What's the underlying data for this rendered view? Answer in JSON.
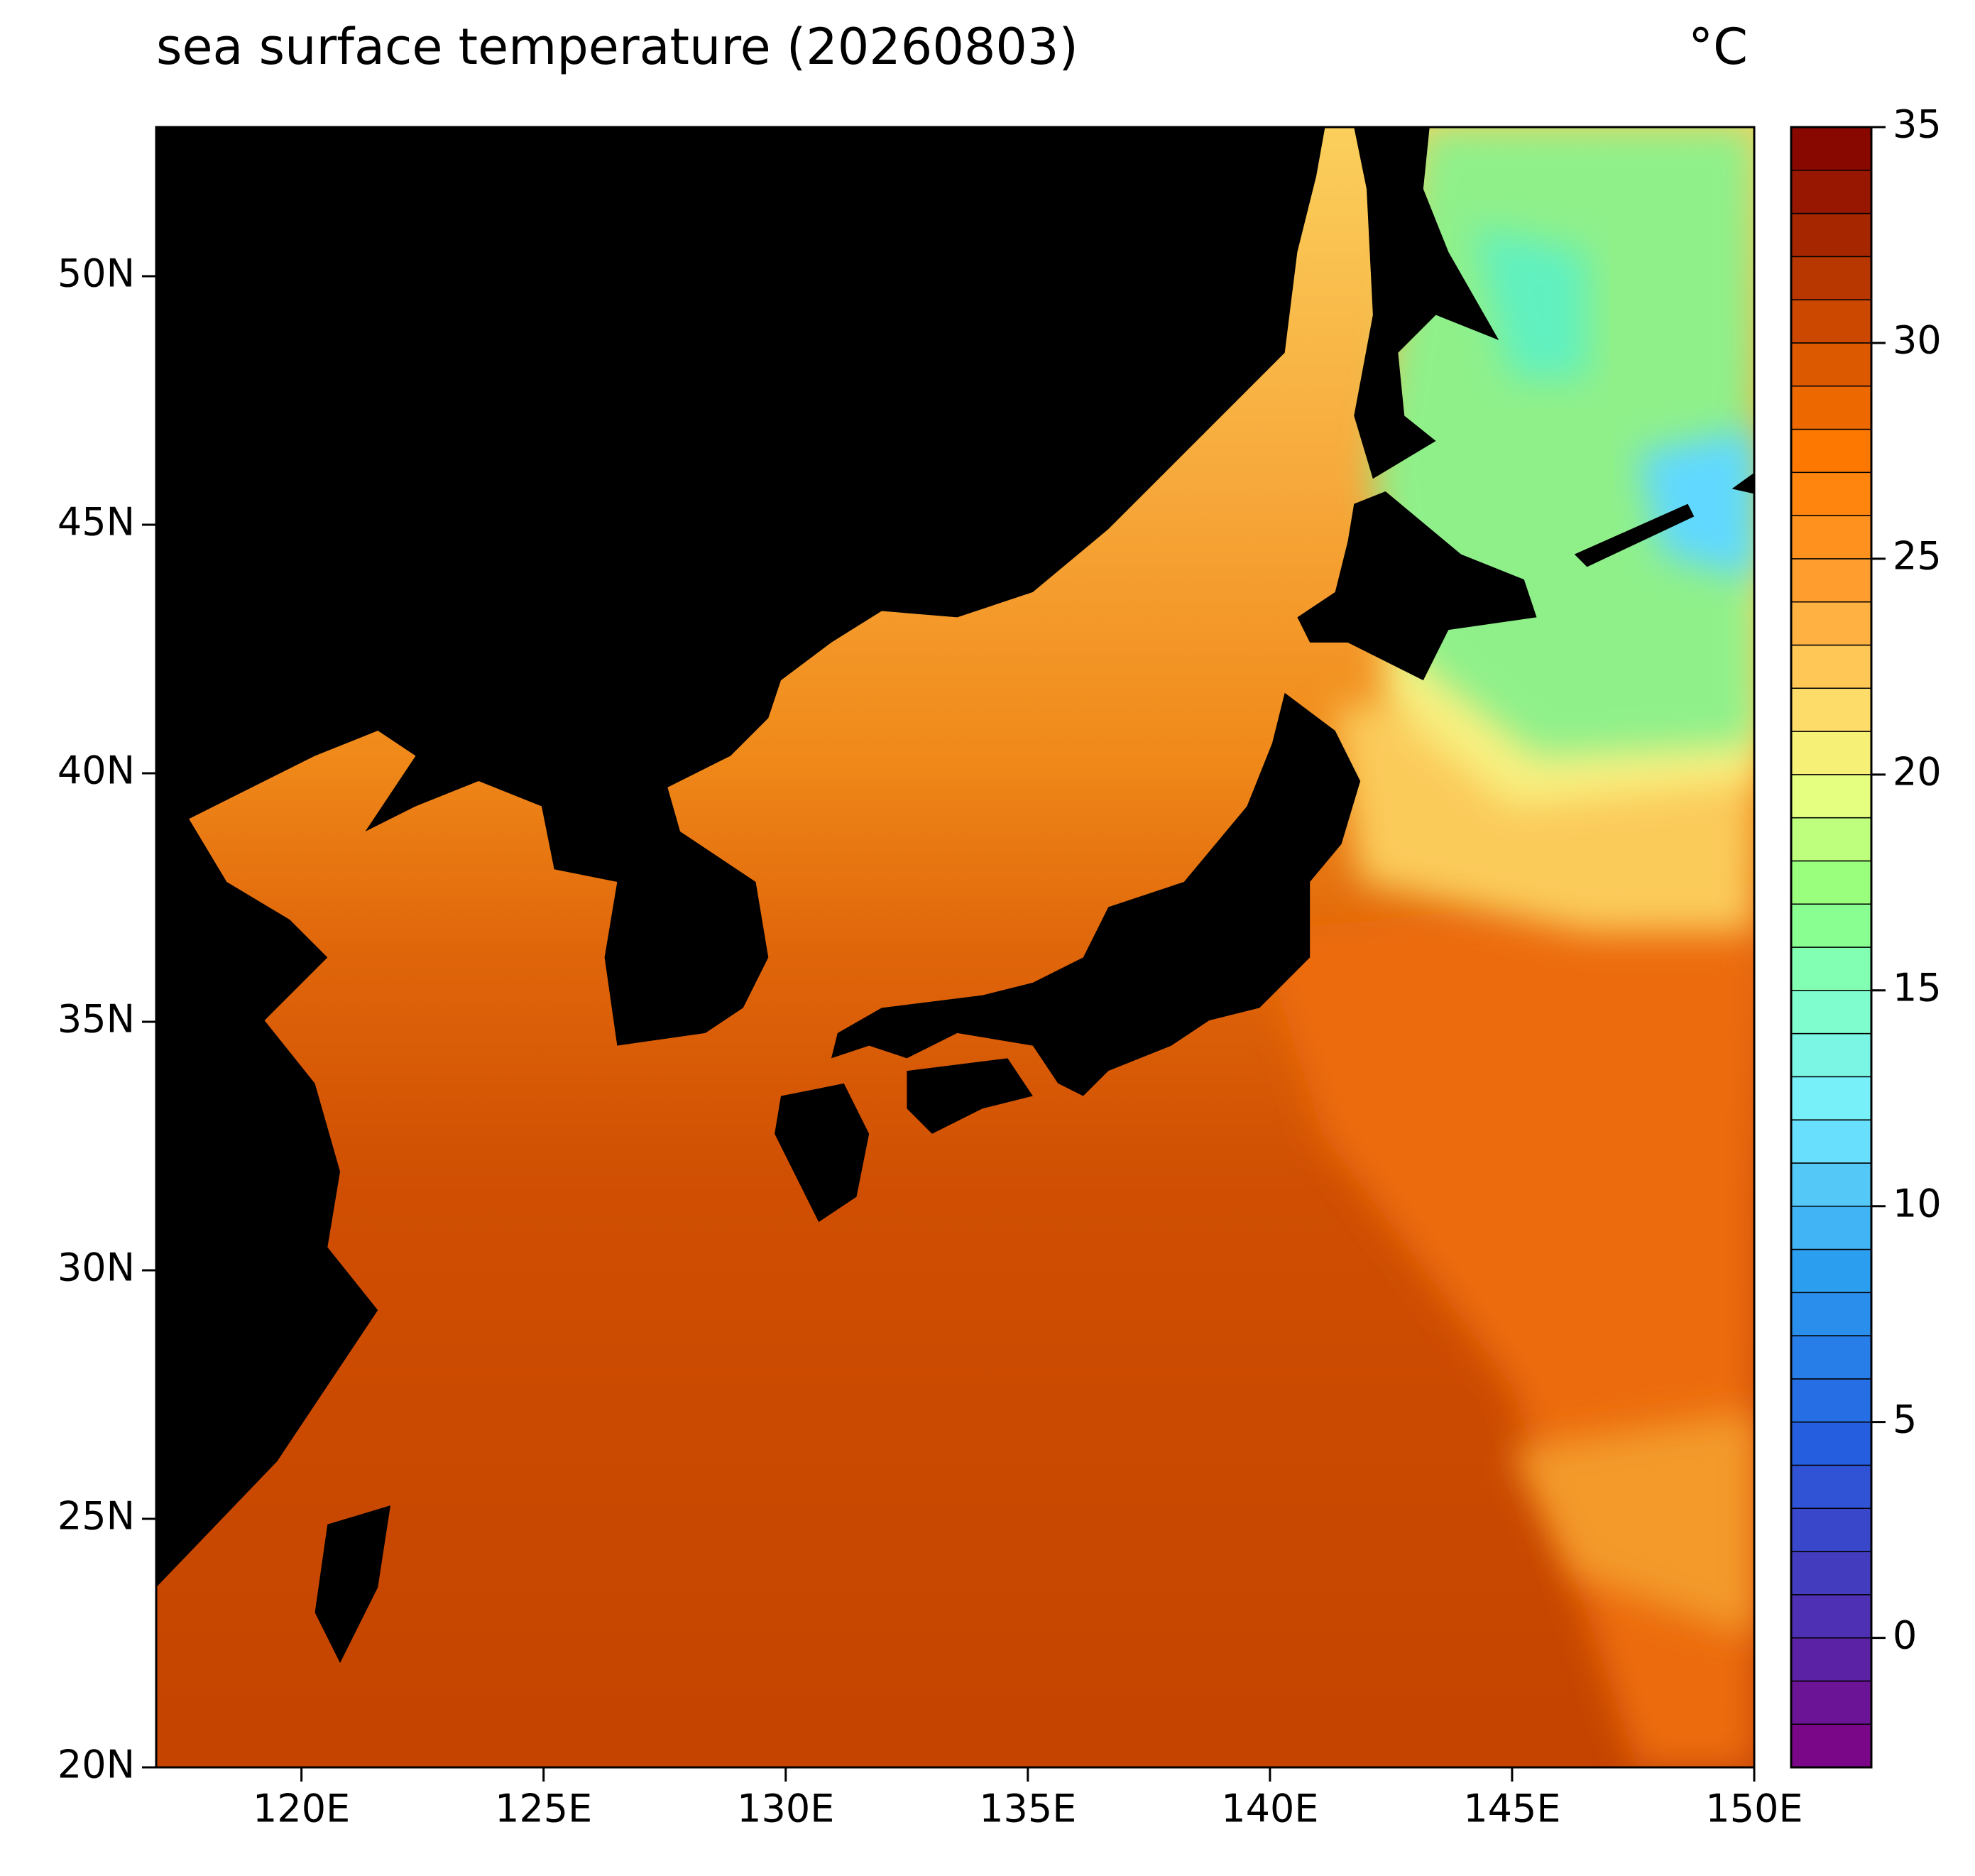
{
  "chart_data": {
    "type": "map",
    "title": "sea surface temperature (20260803)",
    "unit": "°C",
    "xlim": [
      117,
      150
    ],
    "ylim": [
      20,
      53
    ],
    "xticks": [
      {
        "value": 120,
        "label": "120E"
      },
      {
        "value": 125,
        "label": "125E"
      },
      {
        "value": 130,
        "label": "130E"
      },
      {
        "value": 135,
        "label": "135E"
      },
      {
        "value": 140,
        "label": "140E"
      },
      {
        "value": 145,
        "label": "145E"
      },
      {
        "value": 150,
        "label": "150E"
      }
    ],
    "yticks": [
      {
        "value": 20,
        "label": "20N"
      },
      {
        "value": 25,
        "label": "25N"
      },
      {
        "value": 30,
        "label": "30N"
      },
      {
        "value": 35,
        "label": "35N"
      },
      {
        "value": 40,
        "label": "40N"
      },
      {
        "value": 45,
        "label": "45N"
      },
      {
        "value": 50,
        "label": "50N"
      }
    ],
    "colorbar": {
      "lim": [
        -3,
        35
      ],
      "ticks": [
        0,
        5,
        10,
        15,
        20,
        25,
        30,
        35
      ],
      "step": 1
    }
  }
}
